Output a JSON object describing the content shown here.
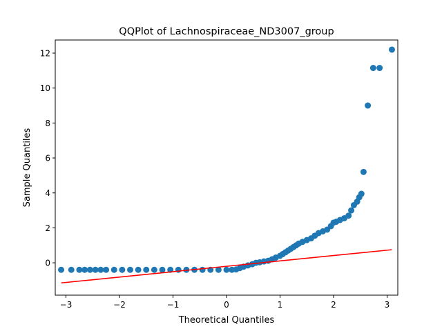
{
  "chart_data": {
    "type": "scatter",
    "title": "QQPlot of Lachnospiraceae_ND3007_group",
    "xlabel": "Theoretical Quantiles",
    "ylabel": "Sample Quantiles",
    "xlim": [
      -3.2,
      3.2
    ],
    "ylim": [
      -1.85,
      12.75
    ],
    "xticks": [
      -3,
      -2,
      -1,
      0,
      1,
      2,
      3
    ],
    "xtick_labels": [
      "−3",
      "−2",
      "−1",
      "0",
      "1",
      "2",
      "3"
    ],
    "yticks": [
      0,
      2,
      4,
      6,
      8,
      10,
      12
    ],
    "ytick_labels": [
      "0",
      "2",
      "4",
      "6",
      "8",
      "10",
      "12"
    ],
    "grid": false,
    "marker_color": "#1f77b4",
    "line_color": "#ff0000",
    "series": [
      {
        "name": "sample quantiles",
        "points": [
          [
            -3.09,
            -0.4
          ],
          [
            -2.9,
            -0.4
          ],
          [
            -2.75,
            -0.4
          ],
          [
            -2.65,
            -0.4
          ],
          [
            -2.55,
            -0.4
          ],
          [
            -2.45,
            -0.4
          ],
          [
            -2.35,
            -0.4
          ],
          [
            -2.25,
            -0.4
          ],
          [
            -2.1,
            -0.4
          ],
          [
            -1.95,
            -0.4
          ],
          [
            -1.8,
            -0.4
          ],
          [
            -1.65,
            -0.4
          ],
          [
            -1.5,
            -0.4
          ],
          [
            -1.35,
            -0.4
          ],
          [
            -1.2,
            -0.4
          ],
          [
            -1.05,
            -0.4
          ],
          [
            -0.9,
            -0.4
          ],
          [
            -0.75,
            -0.4
          ],
          [
            -0.6,
            -0.4
          ],
          [
            -0.45,
            -0.4
          ],
          [
            -0.3,
            -0.4
          ],
          [
            -0.15,
            -0.4
          ],
          [
            0.0,
            -0.4
          ],
          [
            0.1,
            -0.4
          ],
          [
            0.18,
            -0.38
          ],
          [
            0.25,
            -0.3
          ],
          [
            0.32,
            -0.22
          ],
          [
            0.4,
            -0.15
          ],
          [
            0.48,
            -0.08
          ],
          [
            0.55,
            0.0
          ],
          [
            0.62,
            0.03
          ],
          [
            0.7,
            0.08
          ],
          [
            0.78,
            0.12
          ],
          [
            0.85,
            0.2
          ],
          [
            0.92,
            0.3
          ],
          [
            1.0,
            0.4
          ],
          [
            1.05,
            0.5
          ],
          [
            1.1,
            0.6
          ],
          [
            1.15,
            0.7
          ],
          [
            1.2,
            0.8
          ],
          [
            1.25,
            0.9
          ],
          [
            1.3,
            1.0
          ],
          [
            1.35,
            1.1
          ],
          [
            1.42,
            1.2
          ],
          [
            1.5,
            1.3
          ],
          [
            1.58,
            1.4
          ],
          [
            1.65,
            1.55
          ],
          [
            1.72,
            1.7
          ],
          [
            1.8,
            1.8
          ],
          [
            1.88,
            1.9
          ],
          [
            1.95,
            2.1
          ],
          [
            2.0,
            2.3
          ],
          [
            2.05,
            2.35
          ],
          [
            2.12,
            2.45
          ],
          [
            2.2,
            2.55
          ],
          [
            2.28,
            2.7
          ],
          [
            2.33,
            3.0
          ],
          [
            2.38,
            3.3
          ],
          [
            2.44,
            3.5
          ],
          [
            2.48,
            3.75
          ],
          [
            2.52,
            3.95
          ],
          [
            2.56,
            5.2
          ],
          [
            2.64,
            9.0
          ],
          [
            2.74,
            11.15
          ],
          [
            2.86,
            11.15
          ],
          [
            3.09,
            12.2
          ]
        ]
      },
      {
        "name": "reference line",
        "points": [
          [
            -3.09,
            -1.15
          ],
          [
            3.09,
            0.75
          ]
        ]
      }
    ]
  }
}
